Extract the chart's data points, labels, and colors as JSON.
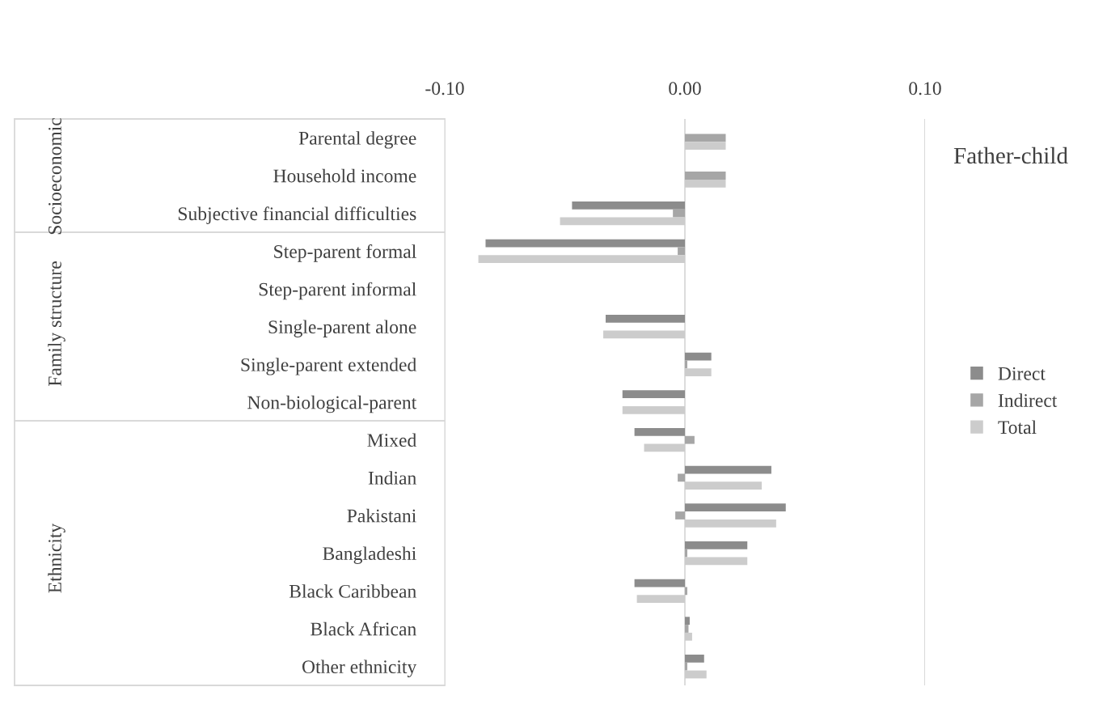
{
  "chart_data": {
    "type": "bar",
    "orientation": "horizontal",
    "title": "Father-child",
    "categories": [
      "Parental degree",
      "Household income",
      "Subjective financial difficulties",
      "Step-parent formal",
      "Step-parent informal",
      "Single-parent alone",
      "Single-parent extended",
      "Non-biological-parent",
      "Mixed",
      "Indian",
      "Pakistani",
      "Bangladeshi",
      "Black Caribbean",
      "Black African",
      "Other ethnicity"
    ],
    "series": [
      {
        "name": "Direct",
        "color": "#8c8c8c",
        "values": [
          0,
          0,
          -0.047,
          -0.083,
          0,
          -0.033,
          0.011,
          -0.026,
          -0.021,
          0.036,
          0.042,
          0.026,
          -0.021,
          0.002,
          0.008
        ]
      },
      {
        "name": "Indirect",
        "color": "#a6a6a6",
        "values": [
          0.017,
          0.017,
          -0.005,
          -0.003,
          0,
          0,
          0.001,
          0,
          0.004,
          -0.003,
          -0.004,
          0.001,
          0.001,
          0.0015,
          0.001
        ]
      },
      {
        "name": "Total",
        "color": "#cccccc",
        "values": [
          0.017,
          0.017,
          -0.052,
          -0.086,
          0,
          -0.034,
          0.011,
          -0.026,
          -0.017,
          0.032,
          0.038,
          0.026,
          -0.02,
          0.003,
          0.009
        ]
      }
    ],
    "xlim": [
      -0.1,
      0.1
    ],
    "xticks": [
      {
        "value": -0.1,
        "label": "-0.10"
      },
      {
        "value": 0,
        "label": "0.00"
      },
      {
        "value": 0.1,
        "label": "0.10"
      }
    ],
    "grid": "x",
    "legend": "right",
    "annotations": [
      "Socioeconomic",
      "Family structure",
      "Ethnicity"
    ]
  }
}
